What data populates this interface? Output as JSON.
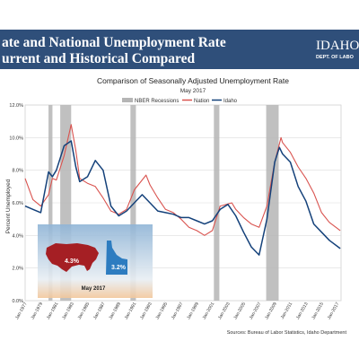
{
  "banner": {
    "line1": "ate and National Unemployment Rate",
    "line2": "urrent and Historical Compared",
    "bg_color": "#2f4f7a",
    "text_color": "#ffffff"
  },
  "logo": {
    "name": "IDAHO",
    "sub": "DEPT. OF LABO"
  },
  "colors": {
    "nation": "#d9534f",
    "idaho": "#14417a",
    "recession": "#b5b5b5",
    "plot_bg": "#ffffff",
    "grid": "#dcdcdc",
    "us_map": "#a51f24",
    "id_map": "#2d7cc0"
  },
  "chart_data": {
    "type": "line",
    "title": "Comparison of Seasonally Adjusted Unemployment Rate",
    "subtitle": "May 2017",
    "ylabel": "Percent Unemployed",
    "xlabel": "",
    "ylim": [
      0,
      12
    ],
    "xlim": [
      1977,
      2017.5
    ],
    "y_ticks": [
      "0.0%",
      "2.0%",
      "4.0%",
      "6.0%",
      "8.0%",
      "10.0%",
      "12.0%"
    ],
    "x_ticks": [
      "Jan-1977",
      "Jan-1979",
      "Jan-1981",
      "Jan-1983",
      "Jan-1985",
      "Jan-1987",
      "Jan-1989",
      "Jan-1991",
      "Jan-1993",
      "Jan-1995",
      "Jan-1997",
      "Jan-1999",
      "Jan-2001",
      "Jan-2003",
      "Jan-2005",
      "Jan-2007",
      "Jan-2009",
      "Jan-2011",
      "Jan-2013",
      "Jan-2015",
      "Jan-2017"
    ],
    "grid": true,
    "legend": {
      "placement": "top",
      "recession_label": "NBER Recessions",
      "entries": [
        "Nation",
        "Idaho"
      ]
    },
    "recessions": [
      [
        1980.0,
        1980.5
      ],
      [
        1981.5,
        1982.9
      ],
      [
        1990.5,
        1991.2
      ],
      [
        2001.2,
        2001.9
      ],
      [
        2007.9,
        2009.5
      ]
    ],
    "series": [
      {
        "name": "Nation",
        "x": [
          1977,
          1978,
          1979,
          1980,
          1980.5,
          1981,
          1982,
          1982.9,
          1983.5,
          1984,
          1985,
          1986,
          1987,
          1988,
          1989,
          1990,
          1991,
          1992.5,
          1993,
          1994,
          1995,
          1996,
          1997,
          1998,
          1999,
          2000,
          2001,
          2002,
          2003.5,
          2004,
          2005,
          2006,
          2007,
          2008,
          2009,
          2009.8,
          2010,
          2011,
          2012,
          2013,
          2014,
          2015,
          2016,
          2017.4
        ],
        "y": [
          7.5,
          6.2,
          5.8,
          6.5,
          7.5,
          7.4,
          8.9,
          10.8,
          9.2,
          7.5,
          7.2,
          7.0,
          6.3,
          5.5,
          5.3,
          5.6,
          6.8,
          7.7,
          7.1,
          6.3,
          5.6,
          5.4,
          5.0,
          4.5,
          4.3,
          4.0,
          4.3,
          5.8,
          6.0,
          5.6,
          5.1,
          4.7,
          4.5,
          5.8,
          8.5,
          10.0,
          9.7,
          9.1,
          8.2,
          7.5,
          6.6,
          5.4,
          4.8,
          4.3
        ]
      },
      {
        "name": "Idaho",
        "x": [
          1977,
          1978,
          1979,
          1980,
          1980.5,
          1981,
          1982,
          1982.9,
          1983.5,
          1984,
          1985,
          1986,
          1987,
          1988,
          1989,
          1990,
          1991,
          1992,
          1993,
          1994,
          1995,
          1996,
          1997,
          1998,
          1999,
          2000,
          2001,
          2002,
          2003,
          2004,
          2005,
          2006,
          2007,
          2008,
          2009,
          2009.6,
          2010,
          2011,
          2012,
          2013,
          2014,
          2015,
          2016,
          2017.4
        ],
        "y": [
          5.8,
          5.6,
          5.4,
          7.9,
          7.6,
          8.0,
          9.5,
          9.8,
          8.2,
          7.3,
          7.6,
          8.6,
          8.0,
          5.8,
          5.2,
          5.5,
          6.0,
          6.5,
          6.0,
          5.5,
          5.4,
          5.3,
          5.1,
          5.1,
          4.9,
          4.7,
          4.9,
          5.6,
          5.9,
          5.2,
          4.2,
          3.3,
          2.8,
          5.0,
          8.5,
          9.4,
          9.0,
          8.5,
          7.0,
          6.1,
          4.7,
          4.2,
          3.7,
          3.2
        ]
      }
    ]
  },
  "inset": {
    "us_value": "4.3%",
    "id_value": "3.2%",
    "date": "May 2017"
  },
  "source": "Sources: Bureau of Labor Statistics, Idaho Department"
}
